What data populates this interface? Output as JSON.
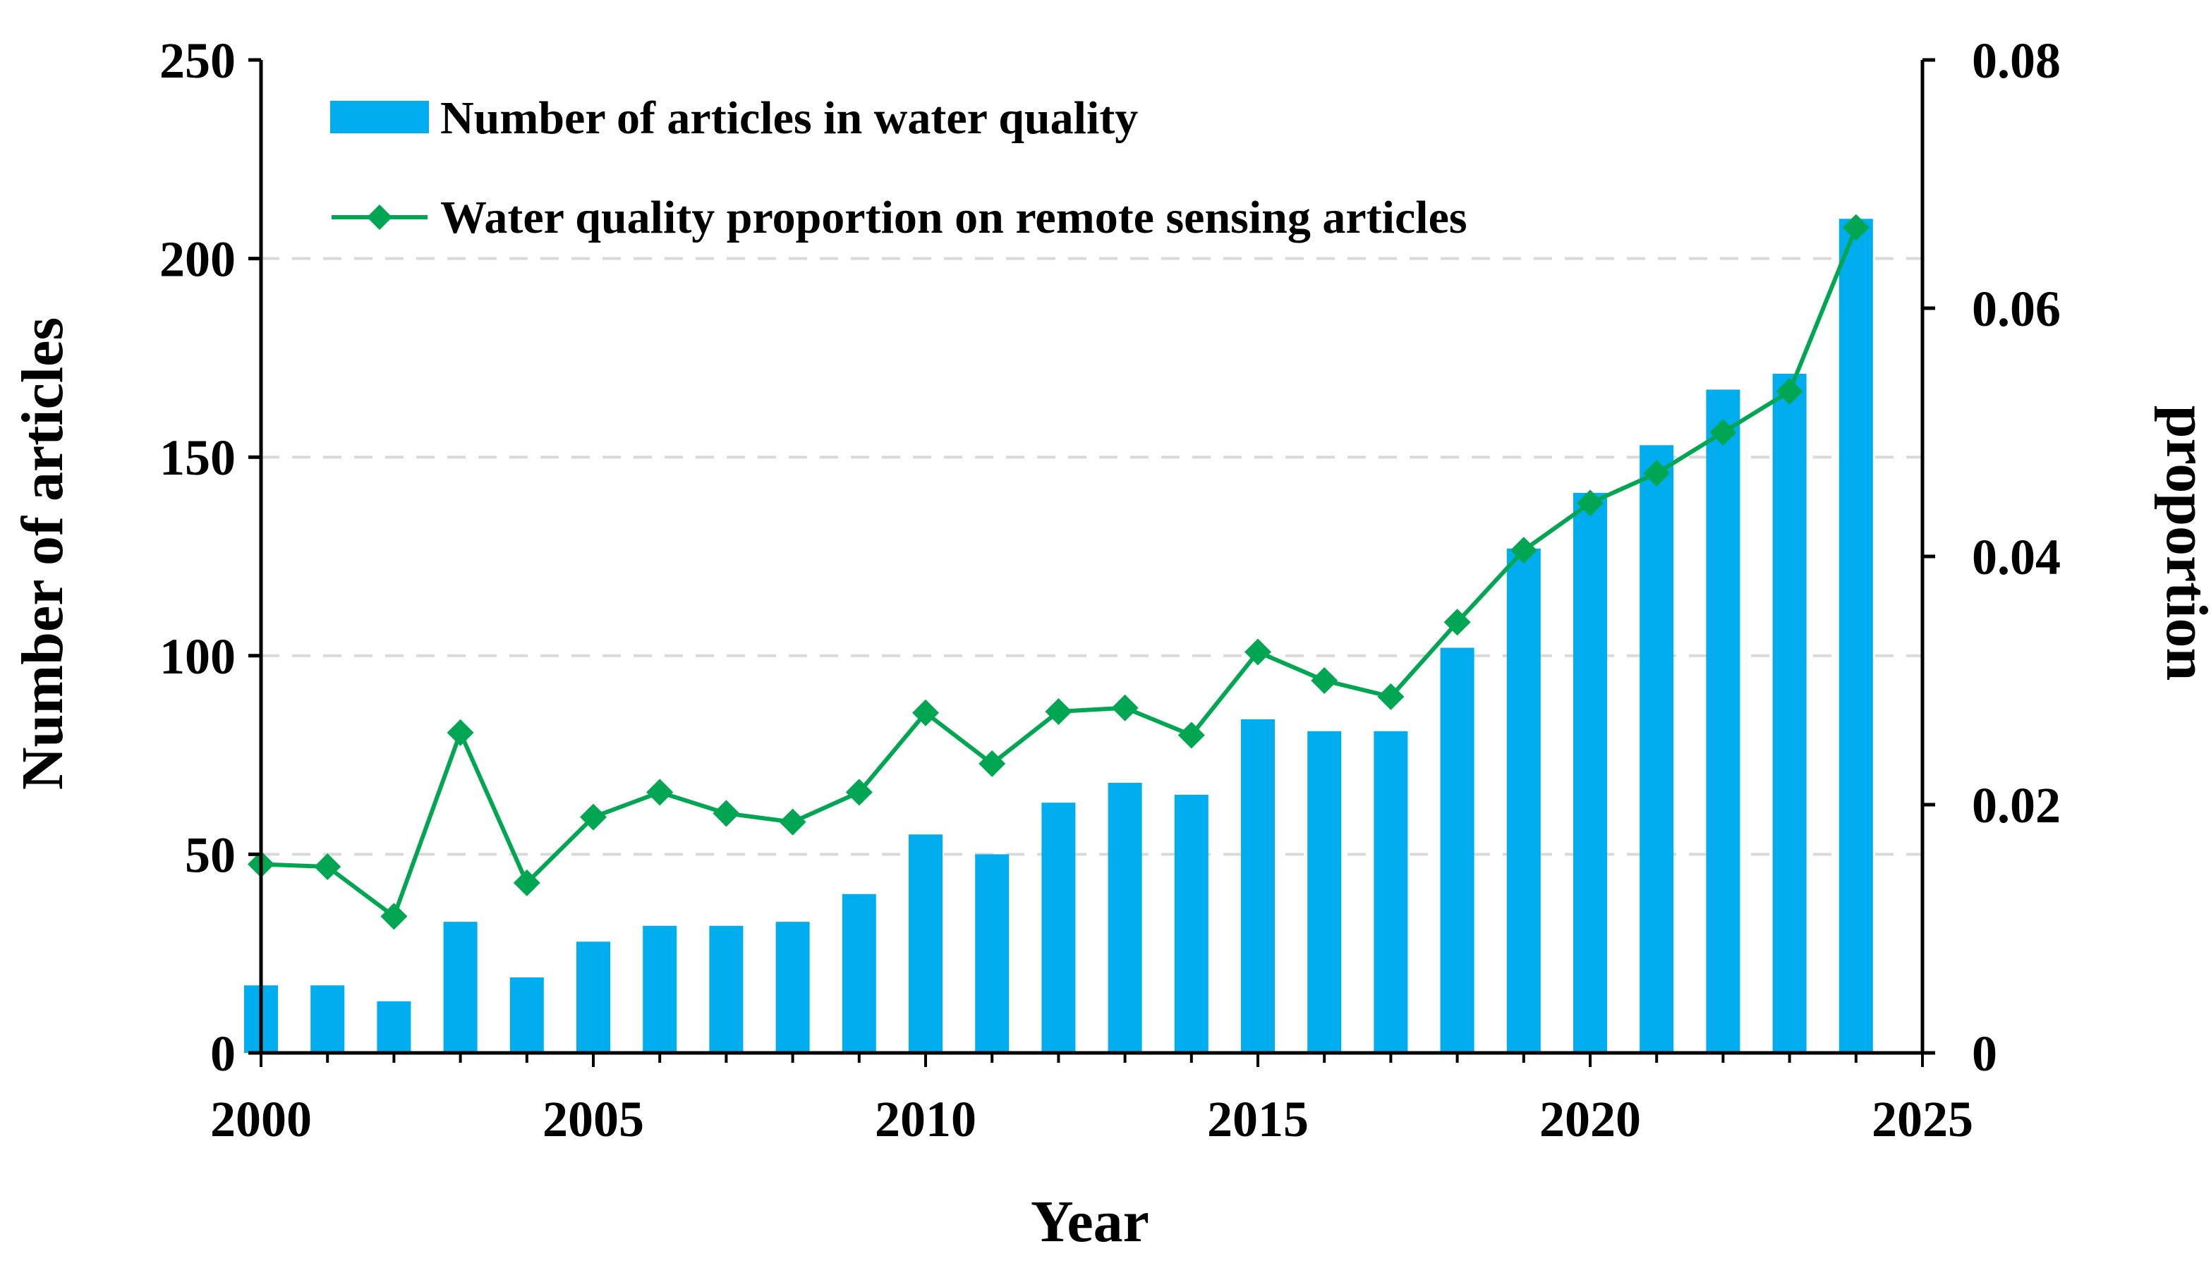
{
  "chart_data": {
    "type": "bar+line",
    "x": [
      2000,
      2001,
      2002,
      2003,
      2004,
      2005,
      2006,
      2007,
      2008,
      2009,
      2010,
      2011,
      2012,
      2013,
      2014,
      2015,
      2016,
      2017,
      2018,
      2019,
      2020,
      2021,
      2022,
      2023,
      2024
    ],
    "series": [
      {
        "name": "Number of articles in water quality",
        "kind": "bar",
        "axis": "left",
        "values": [
          17,
          17,
          13,
          33,
          19,
          28,
          32,
          32,
          33,
          40,
          55,
          50,
          63,
          68,
          65,
          84,
          81,
          81,
          102,
          127,
          141,
          153,
          167,
          171,
          210
        ]
      },
      {
        "name": "Water quality proportion on remote sensing articles",
        "kind": "line",
        "marker": "diamond",
        "axis": "right",
        "values": [
          0.0152,
          0.015,
          0.011,
          0.0258,
          0.0137,
          0.019,
          0.021,
          0.0193,
          0.0186,
          0.021,
          0.0274,
          0.0233,
          0.0275,
          0.0278,
          0.0256,
          0.0323,
          0.03,
          0.0287,
          0.0347,
          0.0405,
          0.0443,
          0.0467,
          0.05,
          0.0533,
          0.0665
        ]
      }
    ],
    "xlabel": "Year",
    "ylabel": "Number of articles",
    "y2label": "proportion",
    "xlim": [
      2000,
      2025
    ],
    "ylim": [
      0,
      250
    ],
    "y2lim": [
      0,
      0.08
    ],
    "xticks": [
      2000,
      2005,
      2010,
      2015,
      2020,
      2025
    ],
    "xtick_labels": [
      "2000",
      "2005",
      "2010",
      "2015",
      "2020",
      "2025"
    ],
    "yticks": [
      0,
      50,
      100,
      150,
      200,
      250
    ],
    "ytick_labels": [
      "0",
      "50",
      "100",
      "150",
      "200",
      "250"
    ],
    "y2ticks": [
      0,
      0.02,
      0.04,
      0.06,
      0.08
    ],
    "y2tick_labels": [
      "0",
      "0.02",
      "0.04",
      "0.06",
      "0.08"
    ],
    "gridlines": [
      50,
      100,
      150,
      200
    ],
    "legend_position": "top-left",
    "colors": {
      "bar": "#00AEEF",
      "line": "#00A651",
      "grid": "#D9D9D9",
      "axis": "#000000"
    }
  }
}
